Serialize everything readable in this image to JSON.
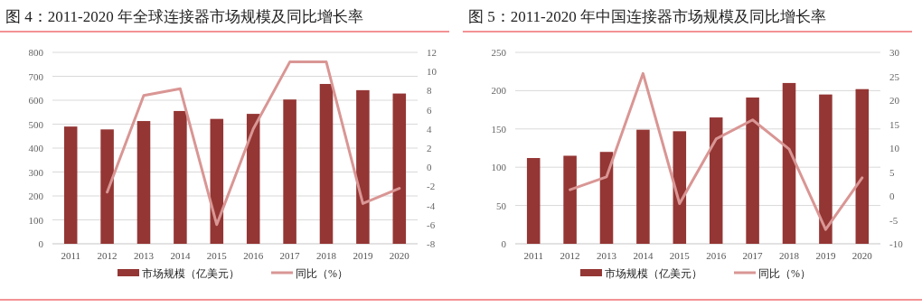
{
  "chart_data": [
    {
      "type": "bar",
      "title": "图 4：2011-2020 年全球连接器市场规模及同比增长率",
      "categories": [
        "2011",
        "2012",
        "2013",
        "2014",
        "2015",
        "2016",
        "2017",
        "2018",
        "2019",
        "2020"
      ],
      "series": [
        {
          "name": "市场规模（亿美元）",
          "color": "#943634",
          "values": [
            490,
            478,
            513,
            555,
            522,
            543,
            603,
            668,
            642,
            628
          ]
        },
        {
          "name": "同比（%）",
          "type": "line",
          "axis": "y2",
          "color": "#d99694",
          "values": [
            null,
            -2.6,
            7.5,
            8.2,
            -6.0,
            4.0,
            11.0,
            11.0,
            -3.8,
            -2.2
          ]
        }
      ],
      "ylim": [
        0,
        800
      ],
      "yticks": [
        0,
        100,
        200,
        300,
        400,
        500,
        600,
        700,
        800
      ],
      "y2lim": [
        -8,
        12
      ],
      "y2ticks": [
        -8,
        -6,
        -4,
        -2,
        0,
        2,
        4,
        6,
        8,
        10,
        12
      ],
      "grid": "y",
      "legend": "bottom",
      "marker": "none",
      "line_style": "solid"
    },
    {
      "type": "bar",
      "title": "图 5：2011-2020 年中国连接器市场规模及同比增长率",
      "categories": [
        "2011",
        "2012",
        "2013",
        "2014",
        "2015",
        "2016",
        "2017",
        "2018",
        "2019",
        "2020"
      ],
      "series": [
        {
          "name": "市场规模（亿美元）",
          "color": "#943634",
          "values": [
            112,
            115,
            120,
            149,
            147,
            165,
            191,
            210,
            195,
            202
          ]
        },
        {
          "name": "同比（%）",
          "type": "line",
          "axis": "y2",
          "color": "#d99694",
          "values": [
            null,
            1.3,
            4.0,
            25.6,
            -1.6,
            11.9,
            15.9,
            9.8,
            -7.0,
            3.8
          ]
        }
      ],
      "ylim": [
        0,
        250
      ],
      "yticks": [
        0,
        50,
        100,
        150,
        200,
        250
      ],
      "y2lim": [
        -10,
        30
      ],
      "y2ticks": [
        -10,
        -5,
        0,
        5,
        10,
        15,
        20,
        25,
        30
      ],
      "grid": "y",
      "legend": "bottom",
      "marker": "none",
      "line_style": "solid"
    }
  ]
}
